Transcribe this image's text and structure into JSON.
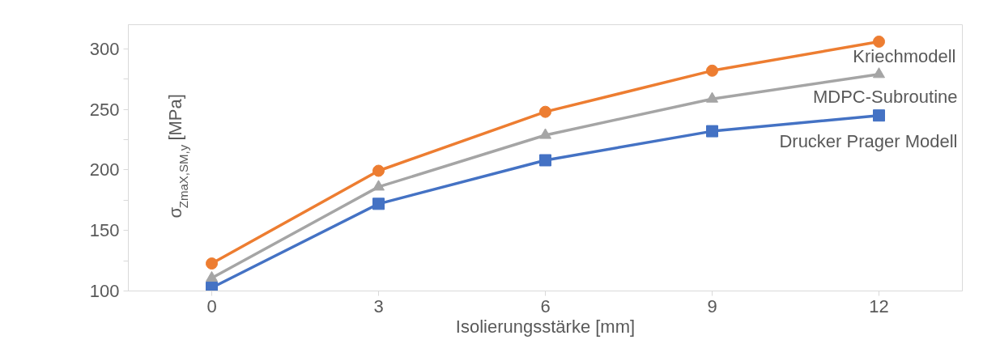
{
  "chart_data": {
    "type": "line",
    "xlabel": "Isolierungsstärke [mm]",
    "ylabel": "σ$_{ZmaX,SM,y}$ [MPa]",
    "x": [
      0,
      3,
      6,
      9,
      12
    ],
    "series": [
      {
        "name": "Kriechmodell",
        "color": "#ed7d31",
        "marker": "circle",
        "values": [
          122.7,
          199.3,
          248,
          282,
          306
        ]
      },
      {
        "name": "MDPC-Subroutine",
        "color": "#a5a5a5",
        "marker": "triangle",
        "values": [
          110.7,
          186,
          228.7,
          258.7,
          279
        ]
      },
      {
        "name": "Drucker Prager Modell",
        "color": "#4472c4",
        "marker": "square",
        "values": [
          102.7,
          172,
          208,
          232,
          245
        ]
      }
    ],
    "xlim": [
      -1.5,
      13.5
    ],
    "ylim": [
      100,
      320
    ],
    "xticks": [
      0,
      3,
      6,
      9,
      12
    ],
    "yticks": [
      100,
      {
        "value": 125,
        "label": null
      },
      150,
      {
        "value": 175,
        "label": null
      },
      200,
      {
        "value": 225,
        "label": null
      },
      250,
      {
        "value": 275,
        "label": null
      },
      300
    ],
    "grid": false,
    "line_style": "solid"
  }
}
